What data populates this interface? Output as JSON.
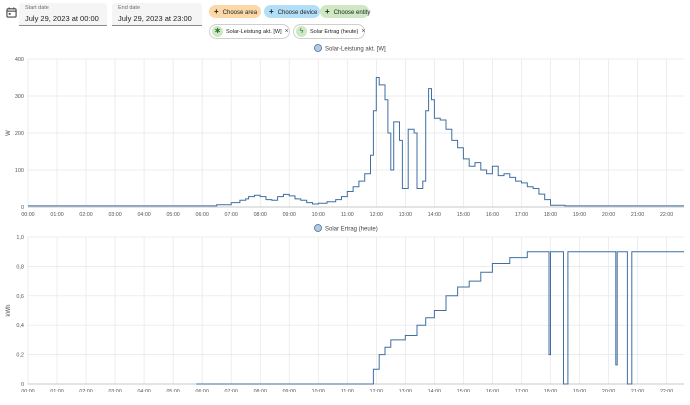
{
  "date_range": {
    "start_label": "Start date",
    "start_value": "July 29, 2023 at 00:00",
    "end_label": "End date",
    "end_value": "July 29, 2023 at 23:00"
  },
  "target_chips": [
    {
      "label": "Choose area",
      "color": "#fcd8a8"
    },
    {
      "label": "Choose device",
      "color": "#b3def7"
    },
    {
      "label": "Choose entity",
      "color": "#cde8c3"
    }
  ],
  "selected_entities": [
    {
      "label": "Solar-Leistung akt. [W]",
      "icon": "solar-power-icon"
    },
    {
      "label": "Solar Ertrag (heute)",
      "icon": "flash-icon"
    }
  ],
  "series_color": "#3f6fa3",
  "chart_data": [
    {
      "type": "line",
      "legend": "Solar-Leistung akt. [W]",
      "ylabel": "W",
      "ylim": [
        0,
        400
      ],
      "y_ticks": [
        "0",
        "100",
        "200",
        "300",
        "400"
      ],
      "x_ticks": [
        "00:00",
        "01:00",
        "02:00",
        "03:00",
        "04:00",
        "05:00",
        "06:00",
        "07:00",
        "08:00",
        "09:00",
        "10:00",
        "11:00",
        "12:00",
        "13:00",
        "14:00",
        "15:00",
        "16:00",
        "17:00",
        "18:00",
        "19:00",
        "20:00",
        "21:00",
        "22:00"
      ],
      "xlim": [
        0,
        22.6
      ],
      "points": [
        [
          0,
          3
        ],
        [
          6.0,
          3
        ],
        [
          6.5,
          6
        ],
        [
          7.0,
          12
        ],
        [
          7.3,
          18
        ],
        [
          7.5,
          22
        ],
        [
          7.6,
          28
        ],
        [
          7.8,
          32
        ],
        [
          8.0,
          28
        ],
        [
          8.2,
          20
        ],
        [
          8.4,
          18
        ],
        [
          8.6,
          28
        ],
        [
          8.8,
          34
        ],
        [
          9.0,
          30
        ],
        [
          9.2,
          22
        ],
        [
          9.4,
          18
        ],
        [
          9.6,
          12
        ],
        [
          9.8,
          8
        ],
        [
          10.0,
          10
        ],
        [
          10.3,
          14
        ],
        [
          10.6,
          20
        ],
        [
          10.8,
          28
        ],
        [
          11.0,
          42
        ],
        [
          11.2,
          55
        ],
        [
          11.4,
          70
        ],
        [
          11.6,
          90
        ],
        [
          11.8,
          140
        ],
        [
          11.9,
          260
        ],
        [
          12.0,
          350
        ],
        [
          12.1,
          330
        ],
        [
          12.3,
          290
        ],
        [
          12.4,
          200
        ],
        [
          12.5,
          100
        ],
        [
          12.6,
          230
        ],
        [
          12.8,
          180
        ],
        [
          12.9,
          50
        ],
        [
          13.0,
          50
        ],
        [
          13.1,
          210
        ],
        [
          13.3,
          200
        ],
        [
          13.4,
          50
        ],
        [
          13.6,
          70
        ],
        [
          13.7,
          260
        ],
        [
          13.8,
          320
        ],
        [
          13.9,
          290
        ],
        [
          14.0,
          240
        ],
        [
          14.2,
          235
        ],
        [
          14.4,
          210
        ],
        [
          14.6,
          180
        ],
        [
          14.8,
          160
        ],
        [
          15.0,
          130
        ],
        [
          15.2,
          110
        ],
        [
          15.4,
          120
        ],
        [
          15.6,
          100
        ],
        [
          15.8,
          90
        ],
        [
          16.0,
          110
        ],
        [
          16.2,
          85
        ],
        [
          16.4,
          90
        ],
        [
          16.6,
          80
        ],
        [
          16.8,
          70
        ],
        [
          17.0,
          65
        ],
        [
          17.2,
          55
        ],
        [
          17.4,
          50
        ],
        [
          17.6,
          35
        ],
        [
          17.8,
          20
        ],
        [
          18.0,
          5
        ],
        [
          18.5,
          3
        ],
        [
          22.6,
          3
        ]
      ]
    },
    {
      "type": "line",
      "legend": "Solar Ertrag (heute)",
      "ylabel": "kWh",
      "ylim": [
        0,
        1.0
      ],
      "y_ticks": [
        "0",
        "0,2",
        "0,4",
        "0,6",
        "0,8",
        "1,0"
      ],
      "x_ticks": [
        "00:00",
        "01:00",
        "02:00",
        "03:00",
        "04:00",
        "05:00",
        "06:00",
        "07:00",
        "08:00",
        "09:00",
        "10:00",
        "11:00",
        "12:00",
        "13:00",
        "14:00",
        "15:00",
        "16:00",
        "17:00",
        "18:00",
        "19:00",
        "20:00",
        "21:00",
        "22:00"
      ],
      "xlim": [
        0,
        22.6
      ],
      "points": [
        [
          5.8,
          0
        ],
        [
          11.8,
          0
        ],
        [
          11.9,
          0.1
        ],
        [
          12.1,
          0.2
        ],
        [
          12.3,
          0.25
        ],
        [
          12.5,
          0.3
        ],
        [
          13.0,
          0.33
        ],
        [
          13.4,
          0.4
        ],
        [
          13.7,
          0.45
        ],
        [
          14.0,
          0.5
        ],
        [
          14.4,
          0.6
        ],
        [
          14.8,
          0.66
        ],
        [
          15.2,
          0.7
        ],
        [
          15.6,
          0.76
        ],
        [
          16.0,
          0.82
        ],
        [
          16.6,
          0.86
        ],
        [
          17.2,
          0.9
        ],
        [
          17.9,
          0.9
        ],
        [
          17.95,
          0.2
        ],
        [
          18.0,
          0.9
        ],
        [
          18.4,
          0.9
        ],
        [
          18.45,
          0
        ],
        [
          18.55,
          0
        ],
        [
          18.6,
          0.9
        ],
        [
          20.2,
          0.9
        ],
        [
          20.25,
          0.13
        ],
        [
          20.3,
          0.9
        ],
        [
          20.6,
          0.9
        ],
        [
          20.65,
          0
        ],
        [
          20.75,
          0
        ],
        [
          20.8,
          0.9
        ],
        [
          22.6,
          0.9
        ]
      ]
    }
  ]
}
